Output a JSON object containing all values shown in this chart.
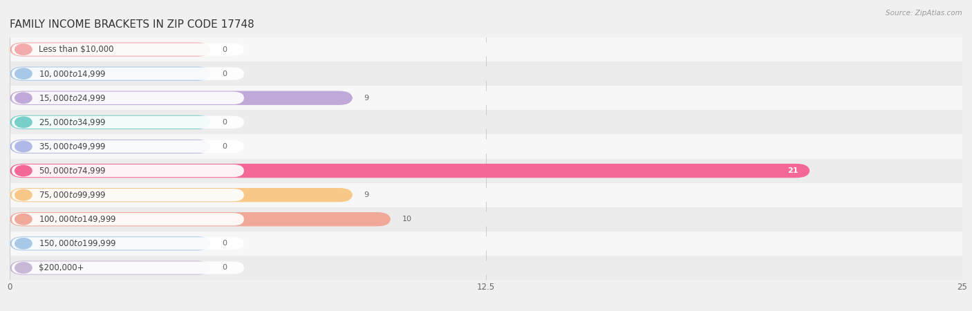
{
  "title": "FAMILY INCOME BRACKETS IN ZIP CODE 17748",
  "source": "Source: ZipAtlas.com",
  "categories": [
    "Less than $10,000",
    "$10,000 to $14,999",
    "$15,000 to $24,999",
    "$25,000 to $34,999",
    "$35,000 to $49,999",
    "$50,000 to $74,999",
    "$75,000 to $99,999",
    "$100,000 to $149,999",
    "$150,000 to $199,999",
    "$200,000+"
  ],
  "values": [
    0,
    0,
    9,
    0,
    0,
    21,
    9,
    10,
    0,
    0
  ],
  "bar_colors": [
    "#F2AAAA",
    "#A8C8E8",
    "#C0A8D8",
    "#78CEC8",
    "#B0B8E8",
    "#F46898",
    "#F8C888",
    "#F0A898",
    "#A8C8E8",
    "#C8B8D8"
  ],
  "xlim": [
    0,
    25
  ],
  "xticks": [
    0,
    12.5,
    25
  ],
  "bg_color": "#f0f0f0",
  "row_colors": [
    "#f7f7f7",
    "#ececec"
  ],
  "title_fontsize": 11,
  "label_fontsize": 8.5,
  "value_fontsize": 8,
  "bar_height": 0.58
}
